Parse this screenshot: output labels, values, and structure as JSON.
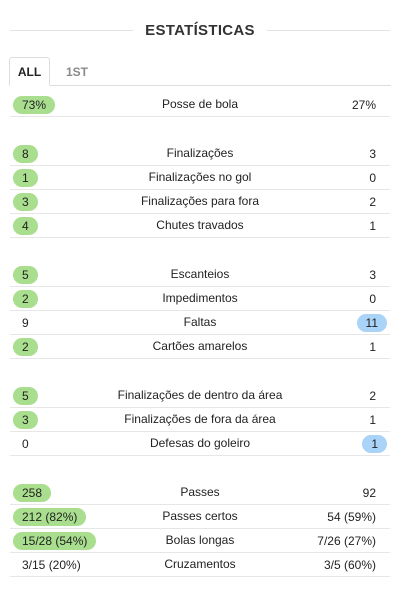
{
  "header": {
    "title": "ESTATÍSTICAS"
  },
  "tabs": [
    {
      "label": "ALL",
      "active": true
    },
    {
      "label": "1ST",
      "active": false
    }
  ],
  "stats": [
    {
      "label": "Posse de bola",
      "home": "73%",
      "away": "27%",
      "winner": "home"
    },
    {
      "label": "Finalizações",
      "home": "8",
      "away": "3",
      "winner": "home"
    },
    {
      "label": "Finalizações no gol",
      "home": "1",
      "away": "0",
      "winner": "home"
    },
    {
      "label": "Finalizações para fora",
      "home": "3",
      "away": "2",
      "winner": "home"
    },
    {
      "label": "Chutes travados",
      "home": "4",
      "away": "1",
      "winner": "home"
    },
    {
      "label": "Escanteios",
      "home": "5",
      "away": "3",
      "winner": "home"
    },
    {
      "label": "Impedimentos",
      "home": "2",
      "away": "0",
      "winner": "home"
    },
    {
      "label": "Faltas",
      "home": "9",
      "away": "11",
      "winner": "away"
    },
    {
      "label": "Cartões amarelos",
      "home": "2",
      "away": "1",
      "winner": "home"
    },
    {
      "label": "Finalizações de dentro da área",
      "home": "5",
      "away": "2",
      "winner": "home"
    },
    {
      "label": "Finalizações de fora da área",
      "home": "3",
      "away": "1",
      "winner": "home"
    },
    {
      "label": "Defesas do goleiro",
      "home": "0",
      "away": "1",
      "winner": "away"
    },
    {
      "label": "Passes",
      "home": "258",
      "away": "92",
      "winner": "home"
    },
    {
      "label": "Passes certos",
      "home": "212 (82%)",
      "away": "54 (59%)",
      "winner": "home"
    },
    {
      "label": "Bolas longas",
      "home": "15/28 (54%)",
      "away": "7/26 (27%)",
      "winner": "home"
    },
    {
      "label": "Cruzamentos",
      "home": "3/15 (20%)",
      "away": "3/5 (60%)",
      "winner": "none"
    }
  ],
  "colors": {
    "home_highlight": "#a8de8e",
    "away_highlight": "#a9d3f7",
    "divider": "#e6e6e6"
  }
}
